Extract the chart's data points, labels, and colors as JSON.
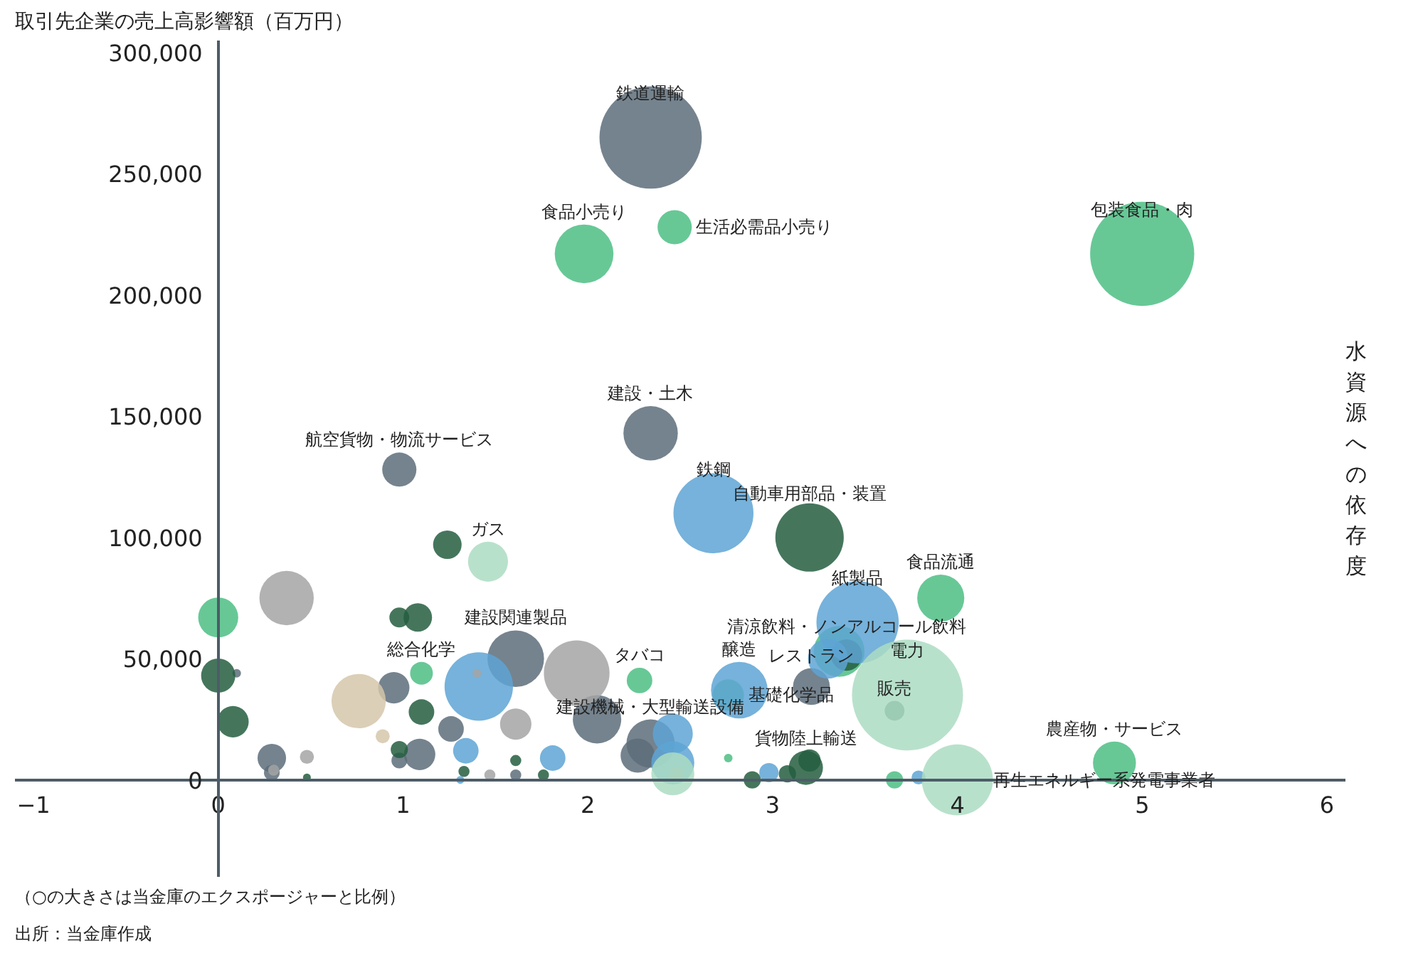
{
  "chart_data": {
    "type": "bubble",
    "ylabel": "取引先企業の売上高影響額（百万円）",
    "xlabel": "水資源への依存度",
    "xlim": [
      -1.1,
      6.1
    ],
    "xticks": [
      -1,
      0,
      1,
      2,
      3,
      4,
      5,
      6
    ],
    "ylim": [
      -40000,
      305000
    ],
    "yticks": [
      {
        "value": 0,
        "label": "0"
      },
      {
        "value": 50000,
        "label": "50,000"
      },
      {
        "value": 100000,
        "label": "100,000"
      },
      {
        "value": 150000,
        "label": "150,000"
      },
      {
        "value": 200000,
        "label": "200,000"
      },
      {
        "value": 250000,
        "label": "250,000"
      },
      {
        "value": 300000,
        "label": "300,000"
      }
    ],
    "grid": false,
    "series": [
      {
        "color": "#5d6d7a",
        "x": [
          2.34,
          2.34,
          0.98,
          3.21,
          1.61,
          2.05,
          0.1,
          0.95,
          1.26,
          0.29,
          1.09,
          2.34,
          2.27,
          1.61,
          0.29,
          0.98
        ],
        "values": [
          265000,
          143000,
          128000,
          38500,
          50000,
          25000,
          44000,
          38000,
          21000,
          9000,
          10500,
          15000,
          10000,
          2000,
          3000,
          8000
        ],
        "sizes": [
          0.85,
          0.24,
          0.095,
          0.11,
          0.26,
          0.19,
          0.006,
          0.08,
          0.053,
          0.066,
          0.08,
          0.19,
          0.095,
          0.01,
          0.02,
          0.02
        ]
      },
      {
        "color": "#4cbe84",
        "x": [
          5.0,
          1.98,
          2.47,
          3.91,
          3.36,
          4.85,
          1.1,
          0,
          2.28,
          2.76,
          2.76,
          3.66
        ],
        "values": [
          217000,
          217000,
          228000,
          75000,
          53000,
          7000,
          44000,
          67000,
          41000,
          35000,
          9000,
          0
        ],
        "sizes": [
          0.88,
          0.28,
          0.095,
          0.18,
          0.21,
          0.15,
          0.042,
          0.13,
          0.053,
          0.08,
          0.006,
          0.024
        ]
      },
      {
        "color": "#245e40",
        "x": [
          3.2,
          1.24,
          3.4,
          3.66,
          0,
          0.08,
          0.98,
          1.08,
          1.1,
          0.98,
          1.33,
          1.61,
          1.76,
          3.18,
          3.08,
          2.89,
          3.2,
          0.48
        ],
        "values": [
          100000,
          97000,
          51500,
          28500,
          43000,
          24000,
          67000,
          67000,
          28000,
          12500,
          3500,
          8000,
          2000,
          5000,
          2500,
          0,
          8000,
          1000
        ],
        "sizes": [
          0.38,
          0.066,
          0.08,
          0.032,
          0.095,
          0.08,
          0.032,
          0.066,
          0.053,
          0.024,
          0.01,
          0.01,
          0.01,
          0.095,
          0.024,
          0.024,
          0.04,
          0.005
        ]
      },
      {
        "color": "#5ea5d5",
        "x": [
          2.68,
          3.46,
          3.3,
          1.41,
          2.82,
          1.34,
          1.81,
          2.46,
          2.46,
          3.79,
          1.31,
          2.98
        ],
        "values": [
          110000,
          65000,
          50000,
          38500,
          37000,
          12000,
          9000,
          19000,
          7000,
          1000,
          0,
          3000
        ],
        "sizes": [
          0.52,
          0.55,
          0.13,
          0.38,
          0.26,
          0.053,
          0.053,
          0.13,
          0.15,
          0.016,
          0.005,
          0.03
        ]
      },
      {
        "color": "#a5a5a5",
        "x": [
          1.94,
          0.37,
          1.61,
          0.48,
          1.47,
          1.4,
          0.3,
          2.48
        ],
        "values": [
          44000,
          75000,
          23000,
          9500,
          2000,
          44000,
          4000,
          2500
        ],
        "sizes": [
          0.35,
          0.24,
          0.08,
          0.016,
          0.01,
          0.006,
          0.01,
          0.016
        ]
      },
      {
        "color": "#d5c7aa",
        "x": [
          0.76,
          0.89
        ],
        "values": [
          32500,
          18000
        ],
        "sizes": [
          0.24,
          0.016
        ]
      },
      {
        "color": "#acdcc2",
        "x": [
          1.46,
          3.73,
          4.0,
          2.46
        ],
        "values": [
          90000,
          35000,
          0,
          2500
        ],
        "sizes": [
          0.13,
          1.0,
          0.41,
          0.15
        ]
      }
    ],
    "annotations": [
      {
        "text": "鉄道運輸",
        "x": 2.34,
        "y": 265000
      },
      {
        "text": "包装食品・肉",
        "x": 5.0,
        "y": 217000
      },
      {
        "text": "食品小売り",
        "x": 1.98,
        "y": 217000
      },
      {
        "text": "生活必需品小売り",
        "x": 2.47,
        "y": 228000
      },
      {
        "text": "建設・土木",
        "x": 2.34,
        "y": 143000
      },
      {
        "text": "航空貨物・物流サービス",
        "x": 0.98,
        "y": 128000
      },
      {
        "text": "鉄鋼",
        "x": 2.68,
        "y": 110000
      },
      {
        "text": "自動車用部品・装置",
        "x": 3.2,
        "y": 100000
      },
      {
        "text": "ガス",
        "x": 1.46,
        "y": 90000
      },
      {
        "text": "食品流通",
        "x": 3.91,
        "y": 75000
      },
      {
        "text": "紙製品",
        "x": 3.46,
        "y": 65000
      },
      {
        "text": "清涼飲料・ノンアルコール飲料",
        "x": 3.4,
        "y": 51500
      },
      {
        "text": "建設関連製品",
        "x": 1.61,
        "y": 50000
      },
      {
        "text": "醸造",
        "x": 2.82,
        "y": 37000
      },
      {
        "text": "総合化学",
        "x": 1.1,
        "y": 44000
      },
      {
        "text": "タバコ",
        "x": 2.28,
        "y": 41000
      },
      {
        "text": "基礎化学品",
        "x": 2.76,
        "y": 35000
      },
      {
        "text": "建設機械・大型輸送設備",
        "x": 2.34,
        "y": 15000
      },
      {
        "text": "レストラン",
        "x": 3.21,
        "y": 38500
      },
      {
        "text": "電力",
        "x": 3.73,
        "y": 35000
      },
      {
        "text": "販売",
        "x": 3.66,
        "y": 28500
      },
      {
        "text": "貨物陸上輸送",
        "x": 3.18,
        "y": 5000
      },
      {
        "text": "再生エネルギー系発電事業者",
        "x": 4.0,
        "y": 0
      },
      {
        "text": "農産物・サービス",
        "x": 4.85,
        "y": 7000
      },
      "（○の大きさは当金庫のエクスポージャーと比例）",
      "出所：当金庫作成"
    ]
  }
}
